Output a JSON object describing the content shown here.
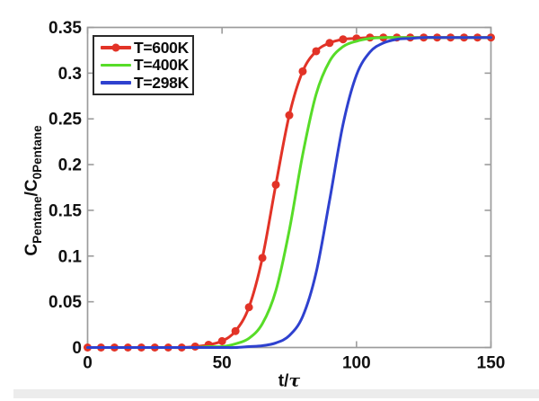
{
  "figure": {
    "background": "#ffffff",
    "bottom_strip_color": "#ececec"
  },
  "axes": {
    "spine_color": "#9c9c9c",
    "tick_label_color": "#111111",
    "tick_length": 7
  },
  "legend": {
    "border_color": "#2a2a2a",
    "background": "#ffffff"
  },
  "chart_data": {
    "type": "line",
    "title": "",
    "xlabel": "t/τ",
    "xlabel_parts": {
      "pre": "t/",
      "tau": "τ"
    },
    "ylabel": "C_Pentane/C_0Pentane",
    "ylabel_parts": {
      "c1": "C",
      "sub1": "Pentane",
      "mid": "/C",
      "sub2": "0Pentane"
    },
    "xlim": [
      0,
      150
    ],
    "ylim": [
      0,
      0.35
    ],
    "x_ticks": [
      0,
      50,
      100,
      150
    ],
    "x_tick_labels": [
      "0",
      "50",
      "100",
      "150"
    ],
    "y_ticks": [
      0,
      0.05,
      0.1,
      0.15,
      0.2,
      0.25,
      0.3,
      0.35
    ],
    "y_tick_labels": [
      "0",
      "0.05",
      "0.1",
      "0.15",
      "0.2",
      "0.25",
      "0.3",
      "0.35"
    ],
    "grid": false,
    "legend_position": "upper-left-inside",
    "x_step": 5,
    "x_values": [
      0,
      5,
      10,
      15,
      20,
      25,
      30,
      35,
      40,
      45,
      50,
      55,
      60,
      65,
      70,
      75,
      80,
      85,
      90,
      95,
      100,
      105,
      110,
      115,
      120,
      125,
      130,
      135,
      140,
      145,
      150
    ],
    "series": [
      {
        "name": "T=600K",
        "color": "#e23327",
        "marker": "circle",
        "values": [
          0,
          0,
          0,
          0,
          0,
          0,
          0,
          0,
          0.001,
          0.003,
          0.007,
          0.018,
          0.044,
          0.098,
          0.178,
          0.254,
          0.302,
          0.324,
          0.333,
          0.337,
          0.338,
          0.339,
          0.339,
          0.339,
          0.339,
          0.339,
          0.339,
          0.339,
          0.339,
          0.339,
          0.339
        ]
      },
      {
        "name": "T=400K",
        "color": "#57dc28",
        "marker": "none",
        "values": [
          0,
          0,
          0,
          0,
          0,
          0,
          0,
          0,
          0,
          0.001,
          0.001,
          0.004,
          0.01,
          0.026,
          0.062,
          0.128,
          0.211,
          0.277,
          0.313,
          0.329,
          0.335,
          0.338,
          0.339,
          0.339,
          0.339,
          0.339,
          0.339,
          0.339,
          0.339,
          0.339,
          0.339
        ]
      },
      {
        "name": "T=298K",
        "color": "#2e41cf",
        "marker": "none",
        "values": [
          0,
          0,
          0,
          0,
          0,
          0,
          0,
          0,
          0,
          0,
          0,
          0,
          0.001,
          0.002,
          0.005,
          0.013,
          0.034,
          0.082,
          0.161,
          0.244,
          0.298,
          0.323,
          0.333,
          0.337,
          0.338,
          0.339,
          0.339,
          0.339,
          0.339,
          0.339,
          0.339
        ]
      }
    ]
  }
}
